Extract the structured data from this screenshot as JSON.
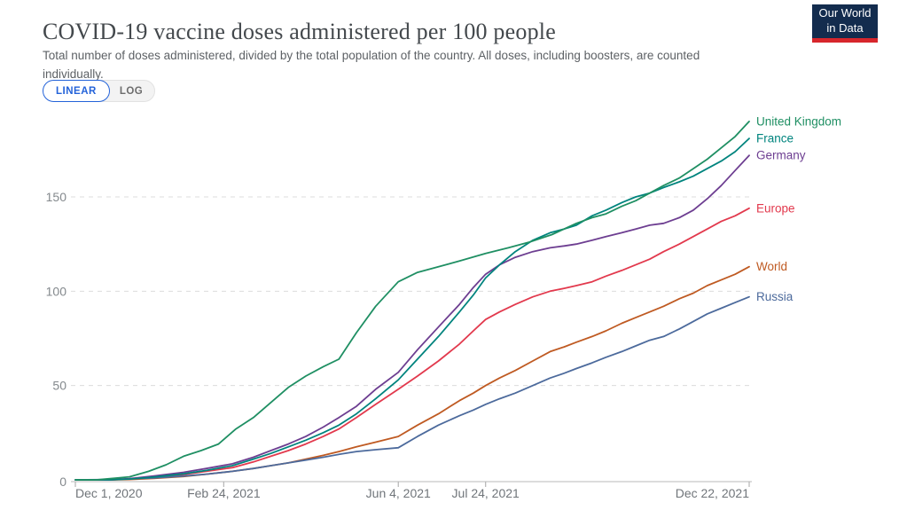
{
  "header": {
    "title": "COVID-19 vaccine doses administered per 100 people",
    "subtitle": "Total number of doses administered, divided by the total population of the country. All doses, including boosters, are counted individually."
  },
  "logo": {
    "line1": "Our World",
    "line2": "in Data",
    "bg_color": "#132C4E",
    "bar_color": "#D7262C"
  },
  "toggle": {
    "linear_label": "LINEAR",
    "log_label": "LOG",
    "active": "LINEAR",
    "active_color": "#2463D9"
  },
  "chart_data": {
    "type": "line",
    "title": "COVID-19 vaccine doses administered per 100 people",
    "xlabel": "",
    "ylabel": "",
    "x_unit": "days since Dec 1, 2020",
    "xlim_days": [
      0,
      386
    ],
    "ylim": [
      0,
      195
    ],
    "grid": "horizontal dashed",
    "legend_position": "right of line ends",
    "y_ticks": [
      0,
      50,
      100,
      150
    ],
    "y_gridlines": [
      50,
      100,
      150
    ],
    "x_ticks": [
      {
        "day": 0,
        "label": "Dec 1, 2020",
        "anchor": "start"
      },
      {
        "day": 85,
        "label": "Feb 24, 2021",
        "anchor": "middle"
      },
      {
        "day": 185,
        "label": "Jun 4, 2021",
        "anchor": "middle"
      },
      {
        "day": 235,
        "label": "Jul 24, 2021",
        "anchor": "middle"
      },
      {
        "day": 386,
        "label": "Dec 22, 2021",
        "anchor": "end"
      }
    ],
    "series": [
      {
        "name": "Europe",
        "color": "#E2394D",
        "points": [
          [
            0,
            0
          ],
          [
            20,
            0
          ],
          [
            31,
            0.4
          ],
          [
            45,
            1.2
          ],
          [
            62,
            2.8
          ],
          [
            75,
            4.5
          ],
          [
            90,
            6.5
          ],
          [
            102,
            9.5
          ],
          [
            112,
            12.5
          ],
          [
            122,
            15.5
          ],
          [
            132,
            19
          ],
          [
            142,
            23
          ],
          [
            151,
            27
          ],
          [
            161,
            33
          ],
          [
            172,
            40
          ],
          [
            185,
            48
          ],
          [
            196,
            55
          ],
          [
            208,
            63
          ],
          [
            220,
            72
          ],
          [
            228,
            79
          ],
          [
            235,
            85
          ],
          [
            243,
            89
          ],
          [
            252,
            93
          ],
          [
            262,
            97
          ],
          [
            272,
            100
          ],
          [
            280,
            101.5
          ],
          [
            287,
            103
          ],
          [
            296,
            105
          ],
          [
            304,
            108
          ],
          [
            313,
            111
          ],
          [
            321,
            114
          ],
          [
            329,
            117
          ],
          [
            337,
            121
          ],
          [
            346,
            125
          ],
          [
            354,
            129
          ],
          [
            362,
            133
          ],
          [
            370,
            137
          ],
          [
            378,
            140
          ],
          [
            386,
            144
          ]
        ]
      },
      {
        "name": "World",
        "color": "#BF5A22",
        "points": [
          [
            0,
            0
          ],
          [
            20,
            0
          ],
          [
            31,
            0.2
          ],
          [
            45,
            0.8
          ],
          [
            62,
            1.8
          ],
          [
            75,
            3
          ],
          [
            90,
            4.5
          ],
          [
            102,
            6
          ],
          [
            112,
            7.5
          ],
          [
            122,
            9
          ],
          [
            132,
            11
          ],
          [
            142,
            13
          ],
          [
            151,
            15
          ],
          [
            161,
            17.5
          ],
          [
            172,
            20
          ],
          [
            185,
            23
          ],
          [
            196,
            29
          ],
          [
            208,
            35
          ],
          [
            220,
            42
          ],
          [
            228,
            46
          ],
          [
            235,
            50
          ],
          [
            243,
            54
          ],
          [
            252,
            58
          ],
          [
            262,
            63
          ],
          [
            272,
            68
          ],
          [
            280,
            70.5
          ],
          [
            287,
            73
          ],
          [
            296,
            76
          ],
          [
            304,
            79
          ],
          [
            313,
            83
          ],
          [
            321,
            86
          ],
          [
            329,
            89
          ],
          [
            337,
            92
          ],
          [
            346,
            96
          ],
          [
            354,
            99
          ],
          [
            362,
            103
          ],
          [
            370,
            106
          ],
          [
            378,
            109
          ],
          [
            386,
            113
          ]
        ]
      },
      {
        "name": "Russia",
        "color": "#4C6A9C",
        "points": [
          [
            0,
            0
          ],
          [
            20,
            0.2
          ],
          [
            31,
            0.5
          ],
          [
            45,
            1
          ],
          [
            62,
            2
          ],
          [
            75,
            3
          ],
          [
            90,
            4.5
          ],
          [
            102,
            6
          ],
          [
            112,
            7.5
          ],
          [
            122,
            9
          ],
          [
            132,
            10.5
          ],
          [
            142,
            12
          ],
          [
            151,
            13.5
          ],
          [
            161,
            15
          ],
          [
            172,
            16
          ],
          [
            185,
            17
          ],
          [
            196,
            23
          ],
          [
            208,
            29
          ],
          [
            220,
            34
          ],
          [
            228,
            37
          ],
          [
            235,
            40
          ],
          [
            243,
            43
          ],
          [
            252,
            46
          ],
          [
            262,
            50
          ],
          [
            272,
            54
          ],
          [
            280,
            56.5
          ],
          [
            287,
            59
          ],
          [
            296,
            62
          ],
          [
            304,
            65
          ],
          [
            313,
            68
          ],
          [
            321,
            71
          ],
          [
            329,
            74
          ],
          [
            337,
            76
          ],
          [
            346,
            80
          ],
          [
            354,
            84
          ],
          [
            362,
            88
          ],
          [
            370,
            91
          ],
          [
            378,
            94
          ],
          [
            386,
            97
          ]
        ]
      },
      {
        "name": "Germany",
        "color": "#6D3E91",
        "points": [
          [
            0,
            0
          ],
          [
            20,
            0
          ],
          [
            31,
            0.6
          ],
          [
            45,
            2
          ],
          [
            62,
            4
          ],
          [
            75,
            6
          ],
          [
            90,
            8.5
          ],
          [
            102,
            12
          ],
          [
            112,
            15.5
          ],
          [
            122,
            19
          ],
          [
            132,
            23
          ],
          [
            142,
            28
          ],
          [
            151,
            33
          ],
          [
            161,
            39
          ],
          [
            172,
            48
          ],
          [
            185,
            57
          ],
          [
            196,
            69
          ],
          [
            208,
            81
          ],
          [
            220,
            93
          ],
          [
            228,
            102
          ],
          [
            235,
            109
          ],
          [
            243,
            114
          ],
          [
            252,
            118
          ],
          [
            262,
            121
          ],
          [
            272,
            123
          ],
          [
            280,
            124
          ],
          [
            287,
            125
          ],
          [
            296,
            127
          ],
          [
            304,
            129
          ],
          [
            313,
            131
          ],
          [
            321,
            133
          ],
          [
            329,
            135
          ],
          [
            337,
            136
          ],
          [
            346,
            139
          ],
          [
            354,
            143
          ],
          [
            362,
            149
          ],
          [
            370,
            156
          ],
          [
            378,
            164
          ],
          [
            386,
            172
          ]
        ]
      },
      {
        "name": "France",
        "color": "#00847E",
        "points": [
          [
            0,
            0
          ],
          [
            20,
            0
          ],
          [
            31,
            0.4
          ],
          [
            45,
            1.5
          ],
          [
            62,
            3.2
          ],
          [
            75,
            5
          ],
          [
            90,
            7.5
          ],
          [
            102,
            11
          ],
          [
            112,
            14
          ],
          [
            122,
            17.5
          ],
          [
            132,
            21
          ],
          [
            142,
            25
          ],
          [
            151,
            29
          ],
          [
            161,
            35
          ],
          [
            172,
            43
          ],
          [
            185,
            53
          ],
          [
            196,
            64
          ],
          [
            208,
            76
          ],
          [
            220,
            89
          ],
          [
            228,
            98
          ],
          [
            235,
            107
          ],
          [
            243,
            114
          ],
          [
            252,
            121
          ],
          [
            262,
            127
          ],
          [
            272,
            131
          ],
          [
            280,
            133
          ],
          [
            287,
            135
          ],
          [
            296,
            140
          ],
          [
            304,
            143
          ],
          [
            313,
            147
          ],
          [
            321,
            150
          ],
          [
            329,
            152
          ],
          [
            337,
            155
          ],
          [
            346,
            158
          ],
          [
            354,
            161
          ],
          [
            362,
            165
          ],
          [
            370,
            169
          ],
          [
            378,
            174
          ],
          [
            386,
            181
          ]
        ]
      },
      {
        "name": "United Kingdom",
        "color": "#1F8F63",
        "points": [
          [
            0,
            0
          ],
          [
            12,
            0
          ],
          [
            22,
            0.8
          ],
          [
            31,
            1.6
          ],
          [
            42,
            4.5
          ],
          [
            52,
            8
          ],
          [
            62,
            12.5
          ],
          [
            72,
            15.5
          ],
          [
            82,
            19
          ],
          [
            92,
            27
          ],
          [
            102,
            33
          ],
          [
            112,
            41
          ],
          [
            122,
            49
          ],
          [
            132,
            55
          ],
          [
            142,
            60
          ],
          [
            151,
            64
          ],
          [
            161,
            78
          ],
          [
            172,
            92
          ],
          [
            185,
            105
          ],
          [
            196,
            110
          ],
          [
            208,
            113
          ],
          [
            220,
            116
          ],
          [
            235,
            120
          ],
          [
            248,
            123
          ],
          [
            260,
            126
          ],
          [
            273,
            130
          ],
          [
            287,
            136
          ],
          [
            296,
            139
          ],
          [
            304,
            141
          ],
          [
            313,
            145
          ],
          [
            321,
            148
          ],
          [
            329,
            152
          ],
          [
            337,
            156
          ],
          [
            346,
            160
          ],
          [
            354,
            165
          ],
          [
            362,
            170
          ],
          [
            370,
            176
          ],
          [
            378,
            182
          ],
          [
            386,
            190
          ]
        ]
      }
    ]
  }
}
